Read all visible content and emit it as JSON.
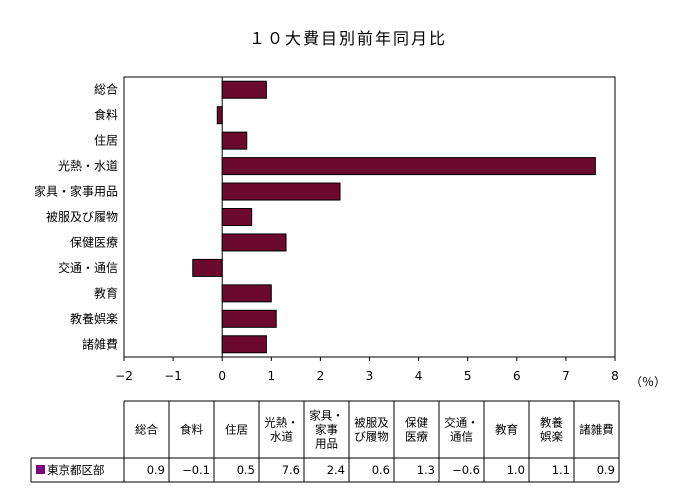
{
  "chart_data": {
    "type": "bar",
    "orientation": "horizontal",
    "title": "１０大費目別前年同月比",
    "unit_label": "（％）",
    "categories": [
      "総合",
      "食料",
      "住居",
      "光熱・水道",
      "家具・家事用品",
      "被服及び履物",
      "保健医療",
      "交通・通信",
      "教育",
      "教養娯楽",
      "諸雑費"
    ],
    "series": [
      {
        "name": "東京都区部",
        "values": [
          0.9,
          -0.1,
          0.5,
          7.6,
          2.4,
          0.6,
          1.3,
          -0.6,
          1.0,
          1.1,
          0.9
        ]
      }
    ],
    "value_labels": [
      "0.9",
      "−0.1",
      "0.5",
      "7.6",
      "2.4",
      "0.6",
      "1.3",
      "−0.6",
      "1.0",
      "1.1",
      "0.9"
    ],
    "xlim": [
      -2,
      8
    ],
    "x_ticks": [
      -2,
      -1,
      0,
      1,
      2,
      3,
      4,
      5,
      6,
      7,
      8
    ],
    "x_tick_labels": [
      "−2",
      "−1",
      "0",
      "1",
      "2",
      "3",
      "4",
      "5",
      "6",
      "7",
      "8"
    ],
    "grid": false,
    "bar_color": "#6b0a2c",
    "table_headers": [
      [
        "総合"
      ],
      [
        "食料"
      ],
      [
        "住居"
      ],
      [
        "光熱・",
        "水道"
      ],
      [
        "家具・",
        "家事",
        "用品"
      ],
      [
        "被服及",
        "び履物"
      ],
      [
        "保健",
        "医療"
      ],
      [
        "交通・",
        "通信"
      ],
      [
        "教育"
      ],
      [
        "教養",
        "娯楽"
      ],
      [
        "諸雑費"
      ]
    ],
    "legend_marker_color": "#800080"
  }
}
